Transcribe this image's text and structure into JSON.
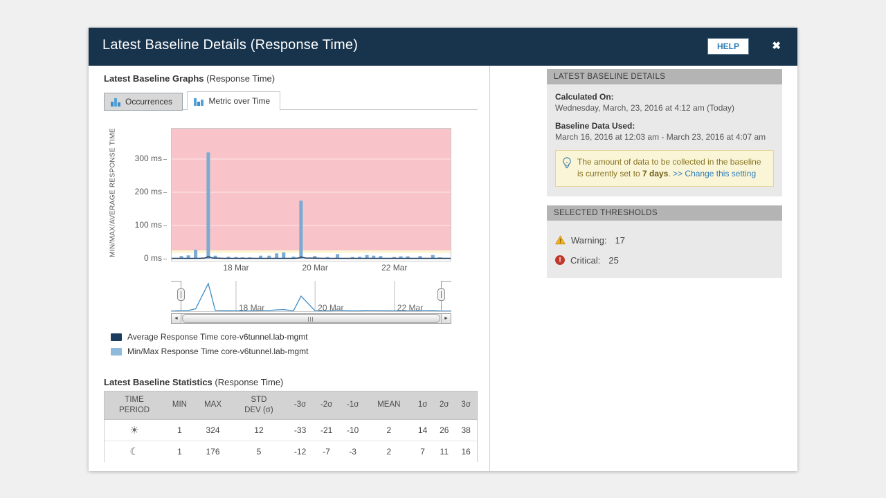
{
  "dialog": {
    "title": "Latest Baseline Details (Response Time)",
    "help_label": "HELP",
    "close_glyph": "✖"
  },
  "graphs_section": {
    "title_bold": "Latest Baseline Graphs",
    "title_suffix": " (Response Time)",
    "tabs": [
      {
        "label": "Occurrences",
        "active": false
      },
      {
        "label": "Metric over Time",
        "active": true
      }
    ]
  },
  "chart_data": {
    "type": "bar",
    "title": "Metric over Time",
    "ylabel": "MIN/MAX/AVERAGE RESPONSE TIME",
    "ylim": [
      0,
      395
    ],
    "y_ticks": [
      {
        "value": 0,
        "label": "0 ms"
      },
      {
        "value": 100,
        "label": "100 ms"
      },
      {
        "value": 200,
        "label": "200 ms"
      },
      {
        "value": 300,
        "label": "300 ms"
      }
    ],
    "x_labels": [
      {
        "pos": 0.232,
        "label": "18 Mar"
      },
      {
        "pos": 0.514,
        "label": "20 Mar"
      },
      {
        "pos": 0.797,
        "label": "22 Mar"
      }
    ],
    "thresholds": {
      "warning": 17,
      "critical": 25
    },
    "band_colors": {
      "normal": "#ffffff",
      "warning": "#fcf6d4",
      "critical": "#f9c4c9"
    },
    "series": [
      {
        "name": "Min/Max Response Time core-v6tunnel.lab-mgmt",
        "type": "bar",
        "color": "#7babd3",
        "points": [
          [
            0.037,
            8
          ],
          [
            0.062,
            10
          ],
          [
            0.088,
            27
          ],
          [
            0.133,
            320
          ],
          [
            0.158,
            9
          ],
          [
            0.205,
            6
          ],
          [
            0.232,
            5
          ],
          [
            0.255,
            4
          ],
          [
            0.281,
            4
          ],
          [
            0.32,
            9
          ],
          [
            0.35,
            9
          ],
          [
            0.377,
            16
          ],
          [
            0.402,
            19
          ],
          [
            0.437,
            6
          ],
          [
            0.464,
            175
          ],
          [
            0.513,
            8
          ],
          [
            0.558,
            5
          ],
          [
            0.594,
            14
          ],
          [
            0.648,
            5
          ],
          [
            0.673,
            6
          ],
          [
            0.699,
            11
          ],
          [
            0.723,
            9
          ],
          [
            0.748,
            8
          ],
          [
            0.796,
            5
          ],
          [
            0.82,
            7
          ],
          [
            0.845,
            7
          ],
          [
            0.889,
            8
          ],
          [
            0.934,
            11
          ],
          [
            0.959,
            4
          ]
        ]
      },
      {
        "name": "Average Response Time core-v6tunnel.lab-mgmt",
        "type": "line",
        "color": "#1b3c5f",
        "points": [
          [
            0,
            1
          ],
          [
            0.1,
            1
          ],
          [
            0.122,
            2
          ],
          [
            0.133,
            6
          ],
          [
            0.148,
            2
          ],
          [
            0.19,
            1
          ],
          [
            0.3,
            1
          ],
          [
            0.44,
            1
          ],
          [
            0.455,
            2
          ],
          [
            0.464,
            5
          ],
          [
            0.48,
            2
          ],
          [
            0.55,
            1
          ],
          [
            0.7,
            1
          ],
          [
            0.85,
            1
          ],
          [
            1,
            1
          ]
        ]
      }
    ],
    "range_selector": {
      "x_labels": [
        {
          "pos": 0.232,
          "label": "18 Mar"
        },
        {
          "pos": 0.514,
          "label": "20 Mar"
        },
        {
          "pos": 0.797,
          "label": "22 Mar"
        }
      ]
    }
  },
  "legend": {
    "items": [
      {
        "label": "Average Response Time core-v6tunnel.lab-mgmt",
        "color": "#1b3c5f"
      },
      {
        "label": "Min/Max Response Time core-v6tunnel.lab-mgmt",
        "color": "#8fbadb"
      }
    ]
  },
  "stats_section": {
    "title_bold": "Latest Baseline Statistics",
    "title_suffix": " (Response Time)",
    "table": {
      "headers": [
        "TIME\nPERIOD",
        "MIN",
        "MAX",
        "STD\nDEV (σ)",
        "-3σ",
        "-2σ",
        "-1σ",
        "MEAN",
        "1σ",
        "2σ",
        "3σ"
      ],
      "rows": [
        {
          "icon": "sun",
          "glyph": "☀",
          "values": [
            "1",
            "324",
            "12",
            "-33",
            "-21",
            "-10",
            "2",
            "14",
            "26",
            "38"
          ]
        },
        {
          "icon": "moon",
          "glyph": "☾",
          "values": [
            "1",
            "176",
            "5",
            "-12",
            "-7",
            "-3",
            "2",
            "7",
            "11",
            "16"
          ]
        }
      ]
    }
  },
  "details_panel": {
    "header": "LATEST BASELINE DETAILS",
    "calculated_on_label": "Calculated On:",
    "calculated_on_value": "Wednesday, March, 23, 2016 at 4:12 am (Today)",
    "baseline_data_label": "Baseline Data Used:",
    "baseline_data_value": "March 16, 2016 at 12:03 am - March 23, 2016 at 4:07 am",
    "info_note": {
      "text_before": "The amount of data to be collected in the baseline is currently set to ",
      "bold": "7 days",
      "text_after": ". ",
      "link": ">> Change this setting"
    }
  },
  "thresholds_panel": {
    "header": "SELECTED THRESHOLDS",
    "warning_label": "Warning:",
    "warning_value": "17",
    "critical_label": "Critical:",
    "critical_value": "25"
  }
}
